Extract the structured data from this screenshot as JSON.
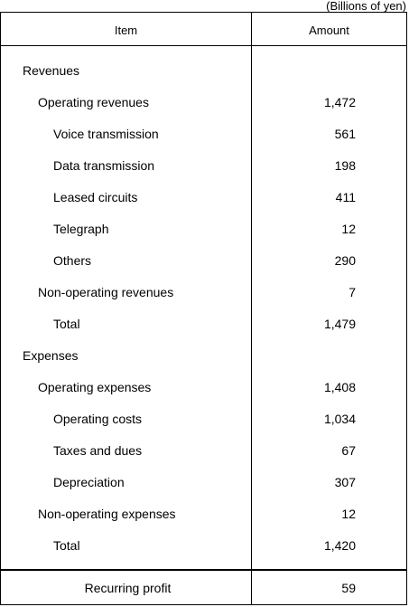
{
  "unit_note": "(Billions of yen)",
  "header": {
    "item": "Item",
    "amount": "Amount"
  },
  "rows": [
    {
      "label": "Revenues",
      "value": "",
      "indent": 0
    },
    {
      "label": "Operating revenues",
      "value": "1,472",
      "indent": 1
    },
    {
      "label": "Voice transmission",
      "value": "561",
      "indent": 2
    },
    {
      "label": "Data transmission",
      "value": "198",
      "indent": 2
    },
    {
      "label": "Leased circuits",
      "value": "411",
      "indent": 2
    },
    {
      "label": "Telegraph",
      "value": "12",
      "indent": 2
    },
    {
      "label": "Others",
      "value": "290",
      "indent": 2
    },
    {
      "label": "Non-operating revenues",
      "value": "7",
      "indent": 1
    },
    {
      "label": "Total",
      "value": "1,479",
      "indent": 2
    },
    {
      "label": "Expenses",
      "value": "",
      "indent": 0
    },
    {
      "label": "Operating expenses",
      "value": "1,408",
      "indent": 1
    },
    {
      "label": "Operating costs",
      "value": "1,034",
      "indent": 2
    },
    {
      "label": "Taxes and dues",
      "value": "67",
      "indent": 2
    },
    {
      "label": "Depreciation",
      "value": "307",
      "indent": 2
    },
    {
      "label": "Non-operating expenses",
      "value": "12",
      "indent": 1
    },
    {
      "label": "Total",
      "value": "1,420",
      "indent": 2
    }
  ],
  "footer": {
    "label": "Recurring profit",
    "value": "59"
  }
}
